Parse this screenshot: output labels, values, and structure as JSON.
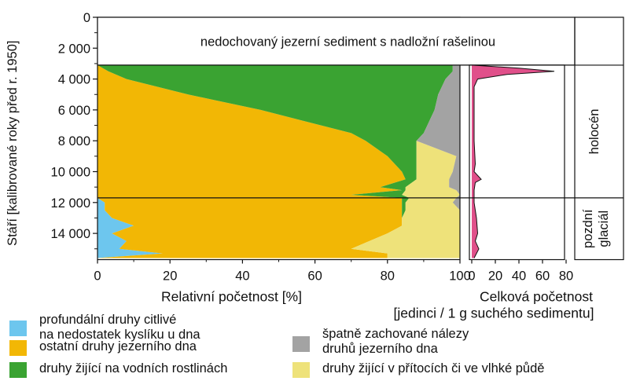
{
  "colors": {
    "profundal": "#6dc6ee",
    "bottom": "#f2b705",
    "plants": "#3aa332",
    "poor": "#a3a3a3",
    "inflow": "#eee27a",
    "total": "#e0508a"
  },
  "chart_data": {
    "type": "area",
    "y_axis": {
      "label": "Stáří [kalibrované roky před r. 1950]",
      "ticks": [
        "0",
        "2 000",
        "4 000",
        "6 000",
        "8 000",
        "10 000",
        "12 000",
        "14 000"
      ],
      "range": [
        0,
        15700
      ],
      "reversed": true
    },
    "main_panel": {
      "xlabel": "Relativní početnost [%]",
      "x_ticks": [
        "0",
        "20",
        "40",
        "60",
        "80",
        "100"
      ],
      "xlim": [
        0,
        100
      ],
      "annotation": "nedochovaný jezerní sediment s nadložní rašelinou",
      "data_top_age": 3100,
      "stack_order": [
        "profundal",
        "bottom",
        "plants",
        "inflow",
        "poor"
      ],
      "boundaries": [
        {
          "age": 3100,
          "profundal": 0,
          "bottom": 0,
          "plants": 98,
          "inflow": 98,
          "poor": 100
        },
        {
          "age": 3500,
          "profundal": 0,
          "bottom": 3,
          "plants": 98,
          "inflow": 98,
          "poor": 100
        },
        {
          "age": 4000,
          "profundal": 0,
          "bottom": 8,
          "plants": 96,
          "inflow": 96,
          "poor": 100
        },
        {
          "age": 5000,
          "profundal": 0,
          "bottom": 25,
          "plants": 94,
          "inflow": 94,
          "poor": 100
        },
        {
          "age": 6000,
          "profundal": 0,
          "bottom": 45,
          "plants": 93,
          "inflow": 93,
          "poor": 100
        },
        {
          "age": 7500,
          "profundal": 0,
          "bottom": 70,
          "plants": 90,
          "inflow": 90,
          "poor": 100
        },
        {
          "age": 8000,
          "profundal": 0,
          "bottom": 74,
          "plants": 88,
          "inflow": 88,
          "poor": 100
        },
        {
          "age": 9000,
          "profundal": 0,
          "bottom": 80,
          "plants": 88,
          "inflow": 99,
          "poor": 100
        },
        {
          "age": 10000,
          "profundal": 0,
          "bottom": 84,
          "plants": 88,
          "inflow": 98,
          "poor": 100
        },
        {
          "age": 10500,
          "profundal": 0,
          "bottom": 85,
          "plants": 88,
          "inflow": 97,
          "poor": 100
        },
        {
          "age": 11000,
          "profundal": 0,
          "bottom": 78,
          "plants": 85,
          "inflow": 97,
          "poor": 100
        },
        {
          "age": 11200,
          "profundal": 0,
          "bottom": 84,
          "plants": 85,
          "inflow": 99,
          "poor": 100
        },
        {
          "age": 11500,
          "profundal": 0,
          "bottom": 70,
          "plants": 84,
          "inflow": 100,
          "poor": 100
        },
        {
          "age": 11700,
          "profundal": 0,
          "bottom": 84,
          "plants": 86,
          "inflow": 99,
          "poor": 100
        },
        {
          "age": 12000,
          "profundal": 2,
          "bottom": 84,
          "plants": 85,
          "inflow": 98,
          "poor": 100
        },
        {
          "age": 12500,
          "profundal": 2,
          "bottom": 84,
          "plants": 85,
          "inflow": 100,
          "poor": 100
        },
        {
          "age": 13000,
          "profundal": 4,
          "bottom": 84,
          "plants": 84,
          "inflow": 100,
          "poor": 100
        },
        {
          "age": 13500,
          "profundal": 10,
          "bottom": 84,
          "plants": 84,
          "inflow": 100,
          "poor": 100
        },
        {
          "age": 14000,
          "profundal": 4,
          "bottom": 80,
          "plants": 80,
          "inflow": 100,
          "poor": 100
        },
        {
          "age": 14500,
          "profundal": 8,
          "bottom": 75,
          "plants": 75,
          "inflow": 100,
          "poor": 100
        },
        {
          "age": 15000,
          "profundal": 6,
          "bottom": 70,
          "plants": 70,
          "inflow": 100,
          "poor": 100
        },
        {
          "age": 15300,
          "profundal": 18,
          "bottom": 80,
          "plants": 80,
          "inflow": 100,
          "poor": 100
        },
        {
          "age": 15600,
          "profundal": 0,
          "bottom": 80,
          "plants": 80,
          "inflow": 100,
          "poor": 100
        }
      ]
    },
    "count_panel": {
      "xlabel_line1": "Celková početnost",
      "xlabel_line2": "[jedinci / 1 g suchého sedimentu]",
      "x_ticks": [
        "0",
        "20",
        "40",
        "60",
        "80"
      ],
      "xlim": [
        0,
        80
      ],
      "profile": [
        [
          3100,
          0
        ],
        [
          3300,
          40
        ],
        [
          3500,
          70
        ],
        [
          3700,
          30
        ],
        [
          4000,
          5
        ],
        [
          4500,
          2
        ],
        [
          6000,
          2
        ],
        [
          8000,
          2
        ],
        [
          9500,
          3
        ],
        [
          10000,
          2
        ],
        [
          10500,
          8
        ],
        [
          10700,
          3
        ],
        [
          11200,
          2
        ],
        [
          12000,
          2
        ],
        [
          13000,
          4
        ],
        [
          14000,
          5
        ],
        [
          14500,
          3
        ],
        [
          15000,
          6
        ],
        [
          15600,
          2
        ]
      ]
    },
    "zones": [
      {
        "label": "holocén",
        "from": 3100,
        "to": 11700
      },
      {
        "label_line1": "pozdní",
        "label_line2": "glaciál",
        "from": 11700,
        "to": 15700
      }
    ]
  },
  "legend": {
    "profundal": {
      "line1": "profundální druhy citlivé",
      "line2": "na nedostatek kyslíku u dna"
    },
    "bottom": {
      "line1": "ostatní druhy jezerního dna"
    },
    "plants": {
      "line1": "druhy žijící na vodních rostlinách"
    },
    "poor": {
      "line1": "špatně zachované nálezy",
      "line2": "druhů jezerního dna"
    },
    "inflow": {
      "line1": "druhy žijící v přítocích či ve vlhké půdě"
    }
  }
}
